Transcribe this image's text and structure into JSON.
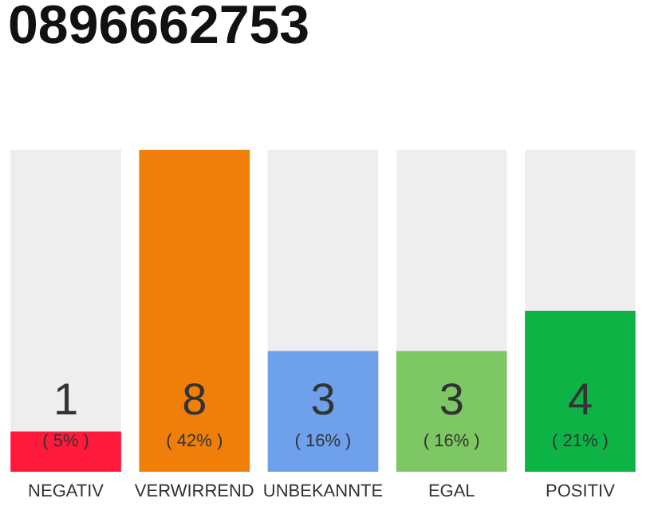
{
  "chart_data": {
    "type": "bar",
    "title": "0896662753",
    "categories": [
      "NEGATIV",
      "VERWIRREND",
      "UNBEKANNTE",
      "EGAL",
      "POSITIV"
    ],
    "values": [
      1,
      8,
      3,
      3,
      4
    ],
    "colors": [
      "#ff1a3c",
      "#f07f0a",
      "#6ea0eb",
      "#7dc864",
      "#0db345"
    ],
    "ylim": [
      0,
      8
    ],
    "data_labels": true,
    "tick_labels": "x",
    "annotations": [
      "( 5% )",
      "( 42% )",
      "( 16% )",
      "( 16% )",
      "( 21% )"
    ]
  }
}
